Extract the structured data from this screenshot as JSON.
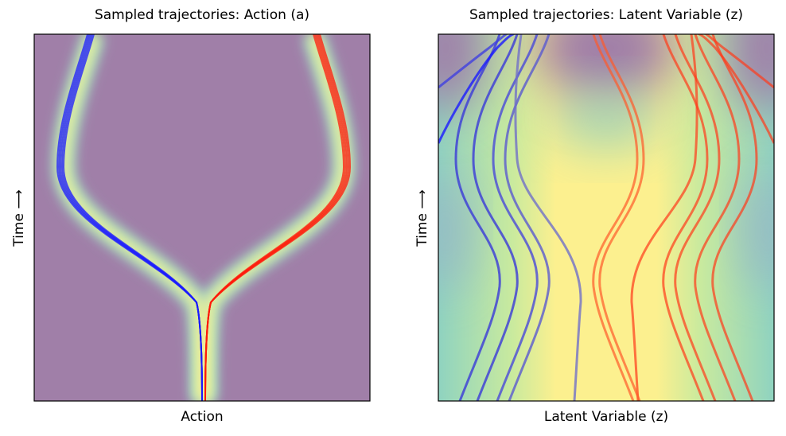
{
  "chart_data": [
    {
      "type": "density",
      "title": "Sampled trajectories: Action (a)",
      "x_label": "Action",
      "y_label": "Time ⟶"
    },
    {
      "type": "density",
      "title": "Sampled trajectories: Latent Variable (z)",
      "x_label": "Latent Variable (z)",
      "y_label": "Time ⟶"
    }
  ]
}
